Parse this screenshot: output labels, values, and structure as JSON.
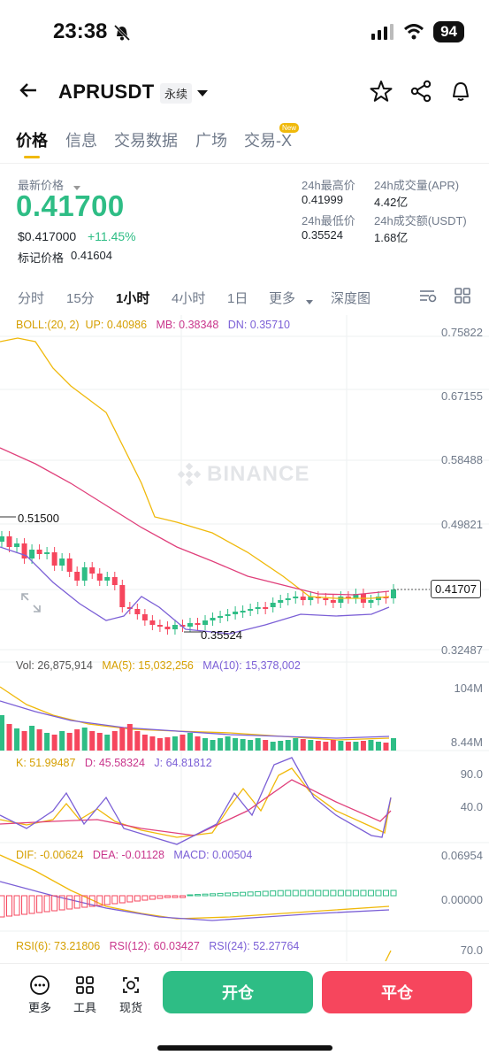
{
  "status_bar": {
    "time": "23:38",
    "battery": "94"
  },
  "header": {
    "symbol": "APRUSDT",
    "contract_type": "永续"
  },
  "tabs": [
    {
      "label": "价格",
      "active": true
    },
    {
      "label": "信息",
      "active": false
    },
    {
      "label": "交易数据",
      "active": false
    },
    {
      "label": "广场",
      "active": false
    },
    {
      "label": "交易-X",
      "active": false,
      "badge": "New"
    }
  ],
  "price": {
    "latest_label": "最新价格",
    "latest": "0.41700",
    "usd": "$0.417000",
    "change": "+11.45%",
    "mark_label": "标记价格",
    "mark": "0.41604"
  },
  "stats": {
    "high_label": "24h最高价",
    "high": "0.41999",
    "vol_base_label": "24h成交量(APR)",
    "vol_base": "4.42亿",
    "low_label": "24h最低价",
    "low": "0.35524",
    "vol_quote_label": "24h成交额(USDT)",
    "vol_quote": "1.68亿"
  },
  "intervals": [
    "分时",
    "15分",
    "1小时",
    "4小时",
    "1日",
    "更多",
    "深度图"
  ],
  "active_interval": "1小时",
  "indicators": {
    "boll": {
      "label": "BOLL:(20, 2)",
      "up": "UP: 0.40986",
      "mb": "MB: 0.38348",
      "dn": "DN: 0.35710"
    },
    "vol": {
      "label": "Vol: 26,875,914",
      "ma5": "MA(5): 15,032,256",
      "ma10": "MA(10): 15,378,002"
    },
    "kdj": {
      "k": "K: 51.99487",
      "d": "D: 45.58324",
      "j": "J: 64.81812"
    },
    "macd": {
      "dif": "DIF: -0.00624",
      "dea": "DEA: -0.01128",
      "macd": "MACD: 0.00504"
    },
    "rsi": {
      "rsi6": "RSI(6): 73.21806",
      "rsi12": "RSI(12): 60.03427",
      "rsi24": "RSI(24): 52.27764"
    }
  },
  "price_axis": [
    "0.75822",
    "0.67155",
    "0.58488",
    "0.49821",
    "0.32487"
  ],
  "current_price_tag": "0.41707",
  "high_marker": "0.51500",
  "low_marker": "0.35524",
  "watermark": "BINANCE",
  "vol_axis": [
    "104M",
    "8.44M"
  ],
  "kdj_axis": [
    "90.0",
    "40.0"
  ],
  "macd_axis": [
    "0.06954",
    "0.00000"
  ],
  "rsi_axis": [
    "70.0"
  ],
  "bottom_nav": {
    "more": "更多",
    "tools": "工具",
    "spot": "现货",
    "open": "开仓",
    "close": "平仓"
  },
  "colors": {
    "up": "#2ebd85",
    "down": "#f6465d",
    "accent": "#f0b90b",
    "boll_up": "#f0b90b",
    "boll_mb": "#e0407b",
    "boll_dn": "#7b5fd6"
  }
}
